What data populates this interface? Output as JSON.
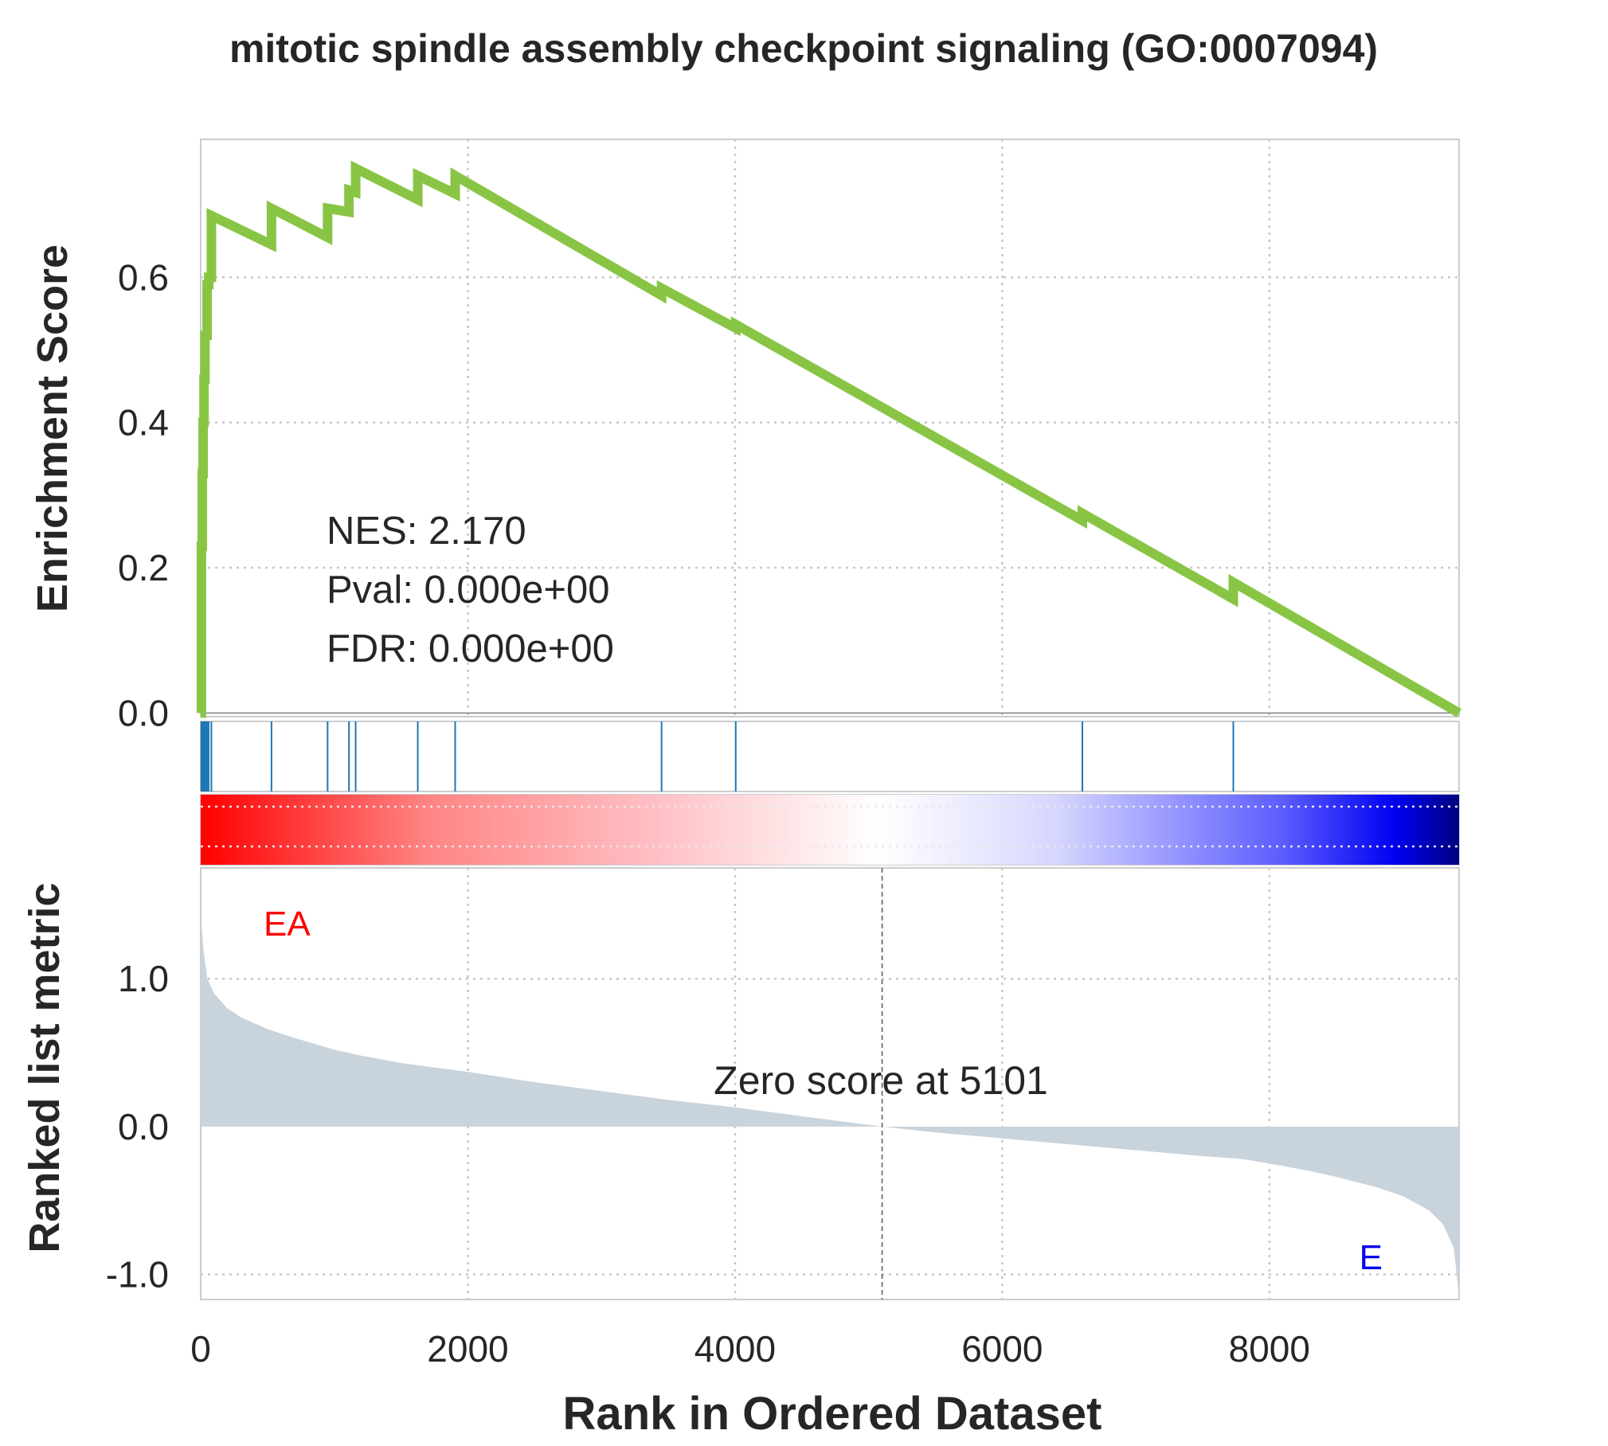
{
  "title": "mitotic spindle assembly checkpoint signaling (GO:0007094)",
  "colors": {
    "es_line": "#88c544",
    "hits": "#1f77b4",
    "metric_fill": "#c9d3dc",
    "pos_label": "#ff0000",
    "neg_label": "#0000ee",
    "grid": "#c8c8c8",
    "spine": "#cccccc",
    "text": "#262626"
  },
  "stats": {
    "nes": "NES: 2.170",
    "pval": "Pval: 0.000e+00",
    "fdr": "FDR: 0.000e+00"
  },
  "labels": {
    "pos_class": "EA",
    "neg_class": "E",
    "zero_score": "Zero score at 5101"
  },
  "chart_data": {
    "type": "line",
    "title": "mitotic spindle assembly checkpoint signaling (GO:0007094)",
    "xlabel": "Rank in Ordered Dataset",
    "ylabel_es": "Enrichment Score",
    "ylabel_metric": "Ranked list metric",
    "xlim": [
      0,
      9420
    ],
    "es_ylim": [
      -0.005,
      0.79
    ],
    "metric_ylim": [
      -1.17,
      1.75
    ],
    "x_ticks": [
      0,
      2000,
      4000,
      6000,
      8000
    ],
    "x_tick_labels": [
      "0",
      "2000",
      "4000",
      "6000",
      "8000"
    ],
    "es_ticks": [
      0.0,
      0.2,
      0.4,
      0.6
    ],
    "es_tick_labels": [
      "0.0",
      "0.2",
      "0.4",
      "0.6"
    ],
    "metric_ticks": [
      -1.0,
      0.0,
      1.0
    ],
    "metric_tick_labels": [
      "-1.0",
      "0.0",
      "1.0"
    ],
    "grid": true,
    "hit_ranks": [
      5,
      12,
      18,
      25,
      32,
      40,
      48,
      60,
      80,
      530,
      950,
      1110,
      1160,
      1625,
      1905,
      3450,
      4005,
      6600,
      7730
    ],
    "running_es": {
      "x": [
        0,
        5,
        5,
        12,
        12,
        18,
        18,
        25,
        25,
        32,
        32,
        40,
        40,
        48,
        48,
        60,
        60,
        80,
        80,
        530,
        530,
        950,
        950,
        1110,
        1110,
        1160,
        1160,
        1625,
        1625,
        1905,
        1905,
        3450,
        3450,
        4005,
        4005,
        6600,
        6600,
        7730,
        7730,
        9420
      ],
      "y": [
        0.0,
        0.0,
        0.23,
        0.23,
        0.33,
        0.33,
        0.4,
        0.4,
        0.46,
        0.46,
        0.52,
        0.52,
        0.52,
        0.52,
        0.59,
        0.59,
        0.6,
        0.6,
        0.685,
        0.645,
        0.695,
        0.655,
        0.695,
        0.69,
        0.72,
        0.717,
        0.75,
        0.707,
        0.74,
        0.715,
        0.74,
        0.575,
        0.585,
        0.53,
        0.535,
        0.265,
        0.275,
        0.157,
        0.18,
        0.0
      ]
    },
    "ranked_metric": {
      "x": [
        0,
        20,
        50,
        100,
        200,
        300,
        500,
        700,
        1000,
        1200,
        1500,
        2000,
        2500,
        3000,
        3500,
        4000,
        4500,
        5101,
        5500,
        6000,
        6500,
        7000,
        7500,
        7800,
        8000,
        8300,
        8500,
        8800,
        9000,
        9200,
        9300,
        9380,
        9420
      ],
      "y": [
        1.45,
        1.2,
        1.0,
        0.9,
        0.8,
        0.74,
        0.66,
        0.6,
        0.52,
        0.48,
        0.43,
        0.37,
        0.3,
        0.24,
        0.18,
        0.13,
        0.07,
        0.0,
        -0.04,
        -0.08,
        -0.12,
        -0.16,
        -0.2,
        -0.22,
        -0.25,
        -0.3,
        -0.34,
        -0.41,
        -0.47,
        -0.57,
        -0.66,
        -0.82,
        -1.15
      ]
    },
    "zero_cross": 5101
  }
}
